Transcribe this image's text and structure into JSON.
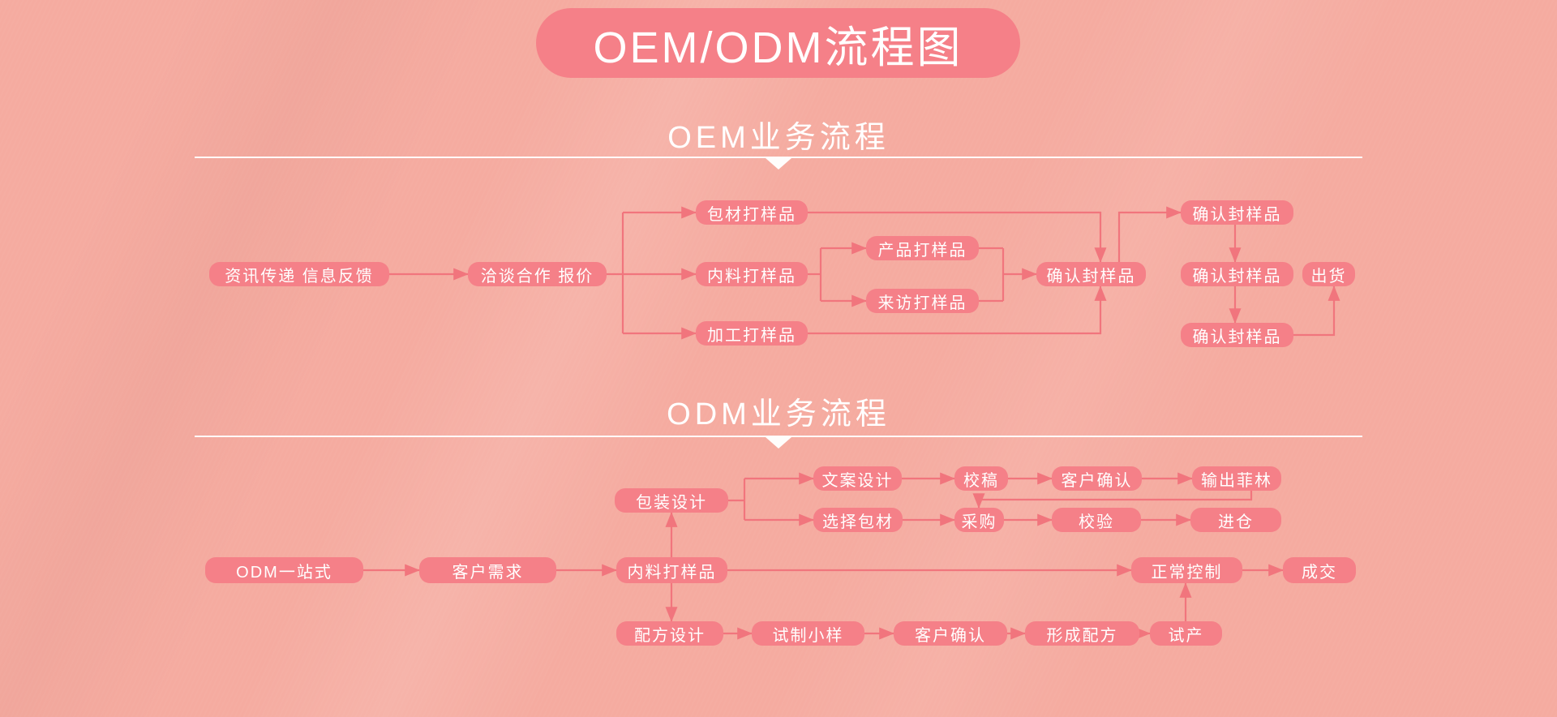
{
  "title": "OEM/ODM流程图",
  "colors": {
    "background": "#f5aba0",
    "node": "#f58088",
    "line": "#f1757d",
    "text": "#ffffff"
  },
  "sections": [
    {
      "heading": "OEM业务流程",
      "nodes": [
        {
          "id": "info-feedback",
          "label": "资讯传递 信息反馈"
        },
        {
          "id": "negotiate-quote",
          "label": "洽谈合作 报价"
        },
        {
          "id": "pack-sample",
          "label": "包材打样品"
        },
        {
          "id": "material-sample",
          "label": "内料打样品"
        },
        {
          "id": "process-sample",
          "label": "加工打样品"
        },
        {
          "id": "product-sample",
          "label": "产品打样品"
        },
        {
          "id": "visit-sample",
          "label": "来访打样品"
        },
        {
          "id": "confirm-seal-main",
          "label": "确认封样品"
        },
        {
          "id": "confirm-seal-1",
          "label": "确认封样品"
        },
        {
          "id": "confirm-seal-2",
          "label": "确认封样品"
        },
        {
          "id": "ship",
          "label": "出货"
        },
        {
          "id": "confirm-seal-3",
          "label": "确认封样品"
        }
      ]
    },
    {
      "heading": "ODM业务流程",
      "nodes": [
        {
          "id": "package-design",
          "label": "包装设计"
        },
        {
          "id": "copy-design",
          "label": "文案设计"
        },
        {
          "id": "proofread",
          "label": "校稿"
        },
        {
          "id": "client-confirm-1",
          "label": "客户确认"
        },
        {
          "id": "output-film",
          "label": "输出菲林"
        },
        {
          "id": "choose-pack",
          "label": "选择包材"
        },
        {
          "id": "purchase",
          "label": "采购"
        },
        {
          "id": "verify",
          "label": "校验"
        },
        {
          "id": "warehouse",
          "label": "进仓"
        },
        {
          "id": "odm-one-stop",
          "label": "ODM一站式"
        },
        {
          "id": "client-need",
          "label": "客户需求"
        },
        {
          "id": "material-sample-odm",
          "label": "内料打样品"
        },
        {
          "id": "normal-control",
          "label": "正常控制"
        },
        {
          "id": "deal",
          "label": "成交"
        },
        {
          "id": "formula-design",
          "label": "配方设计"
        },
        {
          "id": "trial-sample",
          "label": "试制小样"
        },
        {
          "id": "client-confirm-2",
          "label": "客户确认"
        },
        {
          "id": "form-formula",
          "label": "形成配方"
        },
        {
          "id": "trial-production",
          "label": "试产"
        }
      ]
    }
  ]
}
